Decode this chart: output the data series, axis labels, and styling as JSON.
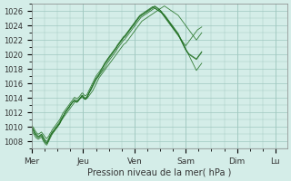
{
  "bg_color": "#d4ede8",
  "grid_color": "#a0c8c0",
  "line_color": "#1a6b1a",
  "title": "Pression niveau de la mer( hPa )",
  "xlabel": "Pression niveau de la mer( hPa )",
  "yticks": [
    1008,
    1010,
    1012,
    1014,
    1016,
    1018,
    1020,
    1022,
    1024,
    1026
  ],
  "ylim": [
    1007,
    1027
  ],
  "xtick_labels": [
    "Mer",
    "Jeu",
    "Ven",
    "Sam",
    "Dim",
    "Lu"
  ],
  "xtick_pos": [
    0,
    48,
    96,
    144,
    192,
    228
  ],
  "total_points": 240,
  "series": [
    [
      1010.0,
      1009.8,
      1009.5,
      1009.2,
      1009.0,
      1008.9,
      1008.7,
      1008.8,
      1008.9,
      1009.0,
      1008.8,
      1008.5,
      1008.3,
      1008.1,
      1008.0,
      1008.2,
      1008.5,
      1008.8,
      1009.0,
      1009.2,
      1009.3,
      1009.5,
      1009.7,
      1009.9,
      1010.1,
      1010.3,
      1010.5,
      1010.8,
      1011.0,
      1011.2,
      1011.4,
      1011.6,
      1011.8,
      1012.0,
      1012.2,
      1012.4,
      1012.6,
      1012.8,
      1013.0,
      1013.2,
      1013.4,
      1013.5,
      1013.6,
      1013.7,
      1013.8,
      1013.9,
      1014.0,
      1014.1,
      1014.0,
      1013.9,
      1013.8,
      1013.9,
      1014.0,
      1014.2,
      1014.4,
      1014.6,
      1014.8,
      1015.0,
      1015.3,
      1015.6,
      1015.9,
      1016.2,
      1016.5,
      1016.8,
      1017.0,
      1017.2,
      1017.4,
      1017.6,
      1017.8,
      1018.0,
      1018.2,
      1018.4,
      1018.6,
      1018.8,
      1019.0,
      1019.2,
      1019.4,
      1019.6,
      1019.8,
      1020.0,
      1020.2,
      1020.4,
      1020.6,
      1020.8,
      1021.0,
      1021.2,
      1021.4,
      1021.5,
      1021.6,
      1021.8,
      1022.0,
      1022.2,
      1022.4,
      1022.6,
      1022.8,
      1023.0,
      1023.2,
      1023.4,
      1023.6,
      1023.8,
      1024.0,
      1024.2,
      1024.4,
      1024.6,
      1024.7,
      1024.8,
      1024.9,
      1025.0,
      1025.1,
      1025.2,
      1025.3,
      1025.4,
      1025.5,
      1025.6,
      1025.7,
      1025.8,
      1025.9,
      1026.0,
      1026.1,
      1026.2,
      1026.3,
      1026.4,
      1026.5,
      1026.6,
      1026.7,
      1026.6,
      1026.5,
      1026.4,
      1026.3,
      1026.2,
      1026.1,
      1026.0,
      1025.9,
      1025.8,
      1025.7,
      1025.6,
      1025.5,
      1025.4,
      1025.2,
      1025.0,
      1024.8,
      1024.6,
      1024.4,
      1024.2,
      1024.0,
      1023.8,
      1023.6,
      1023.4,
      1023.2,
      1023.0,
      1022.8,
      1022.6,
      1022.4,
      1022.2,
      1022.0,
      1022.2,
      1022.4,
      1022.6,
      1022.8,
      1023.0
    ],
    [
      1010.0,
      1009.7,
      1009.4,
      1009.1,
      1008.9,
      1008.7,
      1008.6,
      1008.7,
      1008.8,
      1009.0,
      1008.7,
      1008.4,
      1008.2,
      1007.9,
      1007.8,
      1008.0,
      1008.3,
      1008.7,
      1009.0,
      1009.3,
      1009.5,
      1009.7,
      1009.9,
      1010.1,
      1010.3,
      1010.5,
      1010.7,
      1011.0,
      1011.3,
      1011.5,
      1011.7,
      1011.9,
      1012.1,
      1012.3,
      1012.5,
      1012.7,
      1013.0,
      1013.2,
      1013.4,
      1013.5,
      1013.6,
      1013.5,
      1013.4,
      1013.5,
      1013.7,
      1013.9,
      1014.1,
      1014.3,
      1014.2,
      1014.0,
      1013.9,
      1014.0,
      1014.2,
      1014.5,
      1014.8,
      1015.0,
      1015.3,
      1015.6,
      1015.9,
      1016.2,
      1016.5,
      1016.7,
      1016.9,
      1017.1,
      1017.3,
      1017.5,
      1017.7,
      1017.9,
      1018.1,
      1018.3,
      1018.6,
      1018.9,
      1019.1,
      1019.3,
      1019.5,
      1019.7,
      1019.9,
      1020.1,
      1020.3,
      1020.5,
      1020.8,
      1021.0,
      1021.2,
      1021.4,
      1021.6,
      1021.8,
      1022.0,
      1022.1,
      1022.3,
      1022.5,
      1022.7,
      1022.9,
      1023.1,
      1023.3,
      1023.5,
      1023.7,
      1023.9,
      1024.1,
      1024.3,
      1024.5,
      1024.7,
      1024.9,
      1025.1,
      1025.2,
      1025.3,
      1025.4,
      1025.5,
      1025.6,
      1025.7,
      1025.8,
      1025.9,
      1026.0,
      1026.1,
      1026.2,
      1026.3,
      1026.4,
      1026.3,
      1026.2,
      1026.1,
      1026.0,
      1025.9,
      1025.8,
      1025.7,
      1025.6,
      1025.5,
      1025.3,
      1025.1,
      1024.9,
      1024.7,
      1024.5,
      1024.3,
      1024.1,
      1023.9,
      1023.7,
      1023.5,
      1023.3,
      1023.1,
      1022.9,
      1022.6,
      1022.3,
      1022.0,
      1021.7,
      1021.4,
      1021.1,
      1020.8,
      1020.5,
      1020.2,
      1019.9,
      1019.6,
      1019.3,
      1019.0,
      1018.7,
      1018.4,
      1018.1,
      1017.8,
      1018.0,
      1018.2,
      1018.4,
      1018.6,
      1018.8
    ],
    [
      1010.2,
      1010.0,
      1009.8,
      1009.5,
      1009.3,
      1009.1,
      1009.0,
      1009.1,
      1009.2,
      1009.3,
      1009.1,
      1008.9,
      1008.7,
      1008.5,
      1008.4,
      1008.6,
      1008.8,
      1009.1,
      1009.3,
      1009.6,
      1009.8,
      1010.0,
      1010.2,
      1010.4,
      1010.6,
      1010.8,
      1011.0,
      1011.3,
      1011.6,
      1011.9,
      1012.1,
      1012.3,
      1012.5,
      1012.7,
      1012.9,
      1013.1,
      1013.3,
      1013.5,
      1013.7,
      1013.9,
      1014.1,
      1014.0,
      1013.9,
      1014.0,
      1014.1,
      1014.3,
      1014.5,
      1014.7,
      1014.6,
      1014.4,
      1014.3,
      1014.4,
      1014.6,
      1014.9,
      1015.2,
      1015.5,
      1015.8,
      1016.1,
      1016.4,
      1016.7,
      1017.0,
      1017.2,
      1017.4,
      1017.6,
      1017.8,
      1018.0,
      1018.2,
      1018.4,
      1018.6,
      1018.8,
      1019.1,
      1019.4,
      1019.6,
      1019.8,
      1020.0,
      1020.2,
      1020.4,
      1020.6,
      1020.8,
      1021.0,
      1021.3,
      1021.5,
      1021.7,
      1021.9,
      1022.1,
      1022.3,
      1022.5,
      1022.6,
      1022.8,
      1023.0,
      1023.2,
      1023.4,
      1023.6,
      1023.8,
      1024.0,
      1024.2,
      1024.4,
      1024.6,
      1024.8,
      1025.0,
      1025.2,
      1025.4,
      1025.5,
      1025.6,
      1025.7,
      1025.8,
      1025.9,
      1026.0,
      1026.1,
      1026.2,
      1026.3,
      1026.4,
      1026.5,
      1026.6,
      1026.5,
      1026.4,
      1026.3,
      1026.2,
      1026.1,
      1026.0,
      1025.9,
      1025.8,
      1025.6,
      1025.4,
      1025.2,
      1025.0,
      1024.8,
      1024.6,
      1024.4,
      1024.2,
      1024.0,
      1023.8,
      1023.6,
      1023.4,
      1023.2,
      1023.0,
      1022.8,
      1022.6,
      1022.4,
      1022.2,
      1022.0,
      1021.8,
      1021.6,
      1021.4,
      1021.2,
      1021.4,
      1021.6,
      1021.8,
      1022.0,
      1022.2,
      1022.4,
      1022.6,
      1022.8,
      1023.0,
      1023.2,
      1023.4,
      1023.5,
      1023.6,
      1023.7,
      1023.8
    ],
    [
      1009.8,
      1009.5,
      1009.3,
      1009.0,
      1008.8,
      1008.6,
      1008.5,
      1008.6,
      1008.7,
      1008.8,
      1008.5,
      1008.2,
      1008.0,
      1007.8,
      1007.7,
      1008.0,
      1008.3,
      1008.6,
      1008.9,
      1009.1,
      1009.3,
      1009.5,
      1009.7,
      1009.9,
      1010.1,
      1010.3,
      1010.5,
      1010.8,
      1011.1,
      1011.4,
      1011.7,
      1012.0,
      1012.2,
      1012.4,
      1012.6,
      1012.8,
      1013.0,
      1013.2,
      1013.4,
      1013.6,
      1013.8,
      1013.7,
      1013.6,
      1013.7,
      1013.8,
      1014.0,
      1014.2,
      1014.4,
      1014.3,
      1014.1,
      1014.0,
      1014.1,
      1014.3,
      1014.6,
      1014.9,
      1015.2,
      1015.5,
      1015.8,
      1016.1,
      1016.4,
      1016.7,
      1016.9,
      1017.1,
      1017.3,
      1017.5,
      1017.7,
      1017.9,
      1018.2,
      1018.5,
      1018.8,
      1019.0,
      1019.2,
      1019.4,
      1019.6,
      1019.8,
      1020.0,
      1020.2,
      1020.4,
      1020.6,
      1020.8,
      1021.1,
      1021.3,
      1021.5,
      1021.7,
      1021.9,
      1022.1,
      1022.3,
      1022.4,
      1022.6,
      1022.8,
      1023.0,
      1023.2,
      1023.4,
      1023.6,
      1023.8,
      1024.0,
      1024.2,
      1024.4,
      1024.6,
      1024.8,
      1025.0,
      1025.2,
      1025.3,
      1025.4,
      1025.5,
      1025.6,
      1025.7,
      1025.8,
      1025.9,
      1026.0,
      1026.1,
      1026.2,
      1026.3,
      1026.4,
      1026.5,
      1026.6,
      1026.5,
      1026.4,
      1026.3,
      1026.2,
      1026.1,
      1026.0,
      1025.8,
      1025.6,
      1025.4,
      1025.2,
      1025.0,
      1024.8,
      1024.6,
      1024.4,
      1024.2,
      1024.0,
      1023.8,
      1023.6,
      1023.4,
      1023.2,
      1023.0,
      1022.8,
      1022.5,
      1022.2,
      1021.9,
      1021.6,
      1021.3,
      1021.0,
      1020.7,
      1020.5,
      1020.3,
      1020.1,
      1020.0,
      1019.9,
      1019.8,
      1019.7,
      1019.6,
      1019.5,
      1019.4,
      1019.6,
      1019.8,
      1020.0,
      1020.2,
      1020.4
    ],
    [
      1009.5,
      1009.2,
      1009.0,
      1008.7,
      1008.5,
      1008.4,
      1008.3,
      1008.4,
      1008.5,
      1008.6,
      1008.3,
      1008.0,
      1007.8,
      1007.6,
      1007.5,
      1007.8,
      1008.1,
      1008.4,
      1008.7,
      1009.0,
      1009.2,
      1009.4,
      1009.6,
      1009.8,
      1010.0,
      1010.2,
      1010.4,
      1010.7,
      1011.0,
      1011.3,
      1011.6,
      1011.9,
      1012.2,
      1012.4,
      1012.6,
      1012.8,
      1013.0,
      1013.2,
      1013.4,
      1013.5,
      1013.6,
      1013.5,
      1013.4,
      1013.5,
      1013.7,
      1013.9,
      1014.1,
      1014.3,
      1014.1,
      1013.9,
      1013.8,
      1013.9,
      1014.2,
      1014.5,
      1014.8,
      1015.1,
      1015.4,
      1015.7,
      1016.0,
      1016.3,
      1016.6,
      1016.8,
      1017.0,
      1017.3,
      1017.6,
      1017.9,
      1018.2,
      1018.5,
      1018.8,
      1019.0,
      1019.2,
      1019.4,
      1019.6,
      1019.8,
      1020.0,
      1020.2,
      1020.4,
      1020.6,
      1020.8,
      1021.0,
      1021.2,
      1021.4,
      1021.6,
      1021.8,
      1022.0,
      1022.2,
      1022.4,
      1022.5,
      1022.7,
      1022.9,
      1023.1,
      1023.3,
      1023.5,
      1023.7,
      1023.9,
      1024.1,
      1024.3,
      1024.5,
      1024.7,
      1024.9,
      1025.1,
      1025.3,
      1025.4,
      1025.5,
      1025.6,
      1025.7,
      1025.8,
      1025.9,
      1026.0,
      1026.1,
      1026.2,
      1026.3,
      1026.4,
      1026.5,
      1026.6,
      1026.7,
      1026.6,
      1026.5,
      1026.4,
      1026.3,
      1026.1,
      1025.9,
      1025.7,
      1025.5,
      1025.3,
      1025.1,
      1024.9,
      1024.7,
      1024.5,
      1024.3,
      1024.1,
      1023.9,
      1023.7,
      1023.5,
      1023.3,
      1023.1,
      1022.9,
      1022.7,
      1022.4,
      1022.1,
      1021.8,
      1021.5,
      1021.2,
      1020.9,
      1020.6,
      1020.4,
      1020.2,
      1020.0,
      1019.9,
      1019.8,
      1019.7,
      1019.6,
      1019.5,
      1019.4,
      1019.3,
      1019.5,
      1019.7,
      1019.9,
      1020.1,
      1020.3
    ]
  ]
}
